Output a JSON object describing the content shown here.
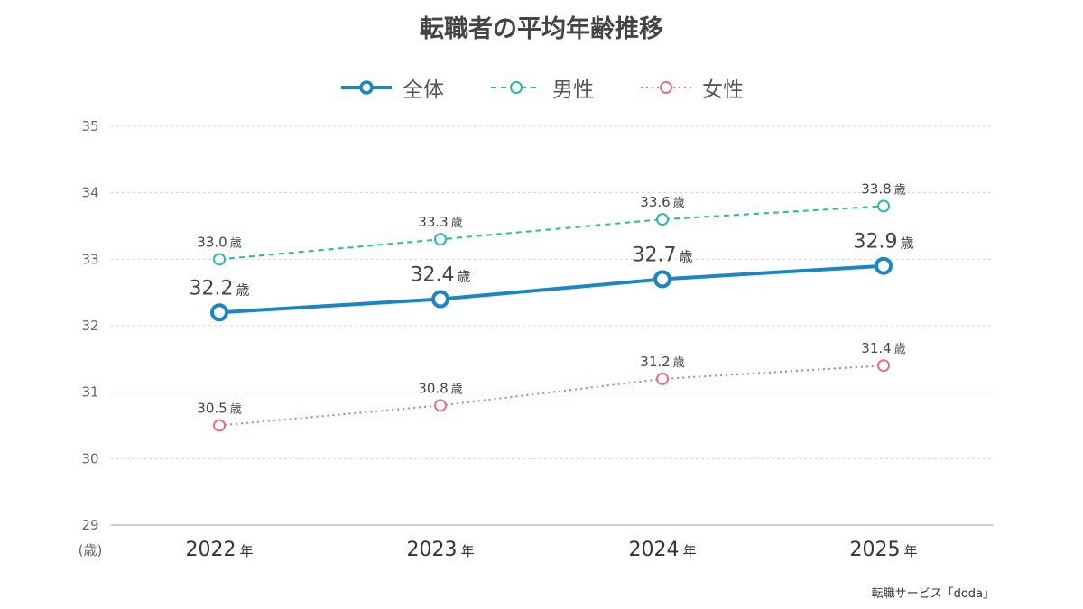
{
  "chart_data": {
    "type": "line",
    "title": "転職者の平均年齢推移",
    "categories": [
      "2022",
      "2023",
      "2024",
      "2025"
    ],
    "x_unit": "年",
    "y_unit": "(歳)",
    "value_unit": "歳",
    "ylim": [
      29,
      35
    ],
    "yticks": [
      29,
      30,
      31,
      32,
      33,
      34,
      35
    ],
    "grid": true,
    "legend_position": "top",
    "series": [
      {
        "name": "全体",
        "values": [
          32.2,
          32.4,
          32.7,
          32.9
        ],
        "color": "#1a86c4",
        "style": "solid"
      },
      {
        "name": "男性",
        "values": [
          33.0,
          33.3,
          33.6,
          33.8
        ],
        "color": "#2bb9a6",
        "style": "dashed"
      },
      {
        "name": "女性",
        "values": [
          30.5,
          30.8,
          31.2,
          31.4
        ],
        "color": "#e07088",
        "style": "dotted"
      }
    ]
  },
  "source": "転職サービス「doda」"
}
